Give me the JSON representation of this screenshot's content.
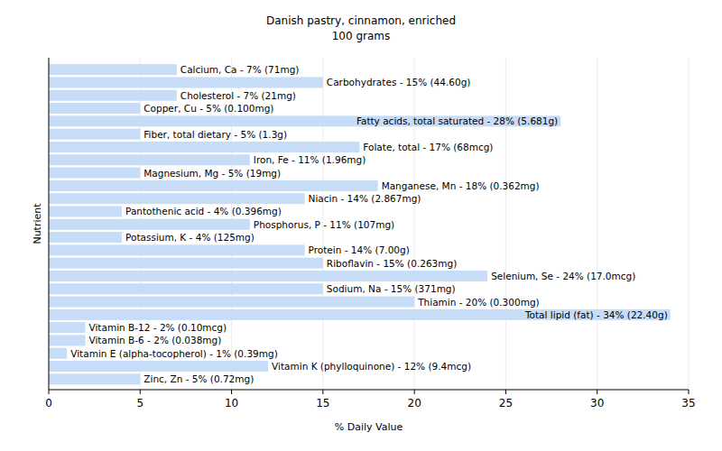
{
  "chart_data": {
    "type": "bar",
    "orientation": "horizontal",
    "title": "Danish pastry, cinnamon, enriched",
    "subtitle": "100 grams",
    "x_label": "% Daily Value",
    "y_label": "Nutrient",
    "categories": [
      "Calcium, Ca - 7% (71mg)",
      "Carbohydrates - 15% (44.60g)",
      "Cholesterol - 7% (21mg)",
      "Copper, Cu - 5% (0.100mg)",
      "Fatty acids, total saturated - 28% (5.681g)",
      "Fiber, total dietary - 5% (1.3g)",
      "Folate, total - 17% (68mcg)",
      "Iron, Fe - 11% (1.96mg)",
      "Magnesium, Mg - 5% (19mg)",
      "Manganese, Mn - 18% (0.362mg)",
      "Niacin - 14% (2.867mg)",
      "Pantothenic acid - 4% (0.396mg)",
      "Phosphorus, P - 11% (107mg)",
      "Potassium, K - 4% (125mg)",
      "Protein - 14% (7.00g)",
      "Riboflavin - 15% (0.263mg)",
      "Selenium, Se - 24% (17.0mcg)",
      "Sodium, Na - 15% (371mg)",
      "Thiamin - 20% (0.300mg)",
      "Total lipid (fat) - 34% (22.40g)",
      "Vitamin B-12 - 2% (0.10mcg)",
      "Vitamin B-6 - 2% (0.038mg)",
      "Vitamin E (alpha-tocopherol) - 1% (0.39mg)",
      "Vitamin K (phylloquinone) - 12% (9.4mcg)",
      "Zinc, Zn - 5% (0.72mg)"
    ],
    "values": [
      7,
      15,
      7,
      5,
      28,
      5,
      17,
      11,
      5,
      18,
      14,
      4,
      11,
      4,
      14,
      15,
      24,
      15,
      20,
      34,
      2,
      2,
      1,
      12,
      5
    ],
    "color": "#c6dcf7",
    "xlim": [
      0,
      35
    ],
    "xticks": [
      0,
      5,
      10,
      15,
      20,
      25,
      30,
      35
    ],
    "grid": true
  }
}
